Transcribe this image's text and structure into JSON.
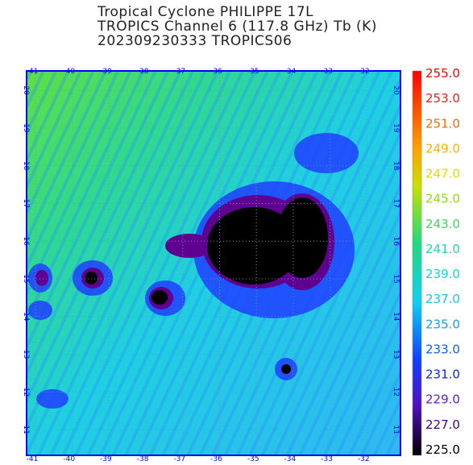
{
  "title": {
    "lines": [
      "Tropical Cyclone PHILIPPE 17L",
      "TROPICS Channel 6 (117.8 GHz) Tb (K)",
      "202309230333   TROPICS06"
    ]
  },
  "map": {
    "lon_labels": [
      "-41",
      "-40",
      "-39",
      "-38",
      "-37",
      "-36",
      "-35",
      "-34",
      "-33",
      "-32"
    ],
    "lat_labels": [
      "20",
      "19",
      "18",
      "17",
      "16",
      "15",
      "14",
      "13",
      "12",
      "11"
    ]
  },
  "colorbar": {
    "labels": [
      {
        "text": "255.0",
        "color": "#ff0000"
      },
      {
        "text": "253.0",
        "color": "#f0201a"
      },
      {
        "text": "251.0",
        "color": "#ff6a00"
      },
      {
        "text": "249.0",
        "color": "#ffb000"
      },
      {
        "text": "247.0",
        "color": "#d8e000"
      },
      {
        "text": "245.0",
        "color": "#90e000"
      },
      {
        "text": "243.0",
        "color": "#40d860"
      },
      {
        "text": "241.0",
        "color": "#20d8a0"
      },
      {
        "text": "239.0",
        "color": "#10d8d0"
      },
      {
        "text": "237.0",
        "color": "#10c8f0"
      },
      {
        "text": "235.0",
        "color": "#10a0ff"
      },
      {
        "text": "233.0",
        "color": "#1060ff"
      },
      {
        "text": "231.0",
        "color": "#1020ff"
      },
      {
        "text": "229.0",
        "color": "#6020d0"
      },
      {
        "text": "227.0",
        "color": "#400080"
      },
      {
        "text": "225.0",
        "color": "#000000"
      }
    ]
  }
}
